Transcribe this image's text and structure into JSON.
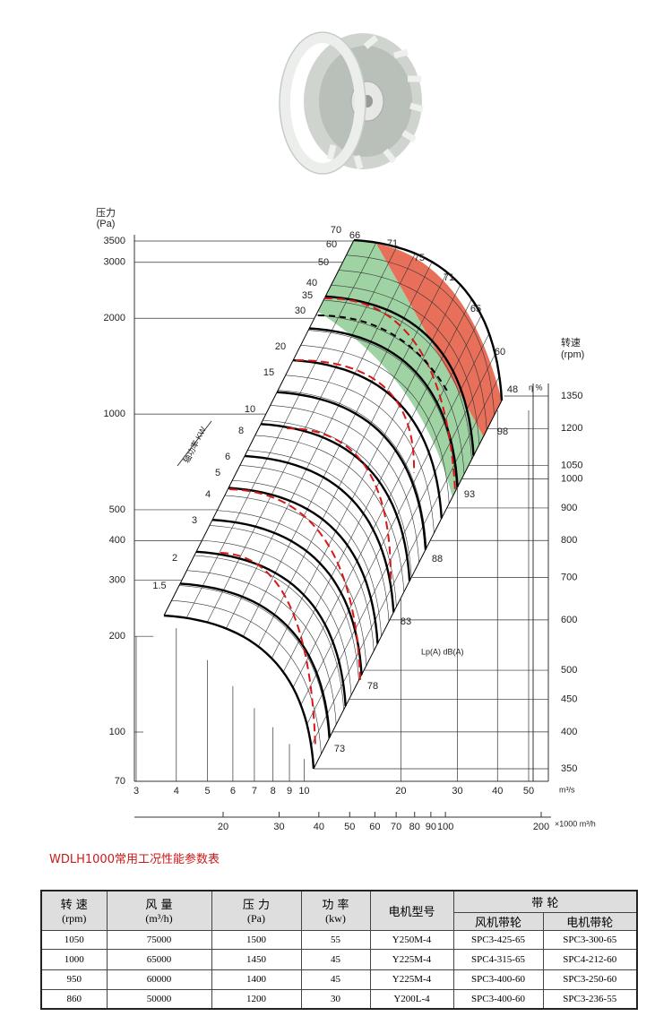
{
  "chart": {
    "pressure_axis": {
      "title": "压力",
      "unit": "(Pa)",
      "ticks": [
        3500,
        3000,
        2000,
        1000,
        500,
        400,
        300,
        200,
        100,
        70
      ]
    },
    "speed_axis": {
      "title": "转速",
      "unit": "(rpm)",
      "ticks": [
        1350,
        1200,
        1050,
        1000,
        900,
        800,
        700,
        600,
        500,
        450,
        400,
        350
      ]
    },
    "efficiency_symbol": "η %",
    "flow_axis": {
      "unit": "m³/s",
      "ticks": [
        3,
        4,
        5,
        6,
        7,
        8,
        9,
        10,
        20,
        30,
        40,
        50
      ]
    },
    "flow_axis_h": {
      "unit": "×1000 m³/h",
      "ticks": [
        20,
        30,
        40,
        50,
        60,
        70,
        80,
        90,
        100,
        200
      ]
    },
    "power_label": "轴功率 KW",
    "power_values": [
      70,
      60,
      50,
      40,
      35,
      30,
      20,
      15,
      10,
      8,
      6,
      5,
      4,
      3,
      2,
      1.5
    ],
    "efficiency_values": [
      66,
      71,
      75,
      71,
      65,
      60,
      48
    ],
    "noise_label": "Lp(A) dB(A)",
    "noise_values": [
      98,
      93,
      88,
      83,
      78,
      73
    ]
  },
  "table": {
    "title": "WDLH1000常用工况性能参数表",
    "columns": [
      {
        "name": "转 速",
        "unit": "(rpm)"
      },
      {
        "name": "风 量",
        "unit": "(m³/h)"
      },
      {
        "name": "压 力",
        "unit": "(Pa)"
      },
      {
        "name": "功 率",
        "unit": "(kw)"
      }
    ],
    "motor_model": "电机型号",
    "pulley": "带 轮",
    "pulley_columns": [
      "风机带轮",
      "电机带轮"
    ],
    "rows": [
      [
        1050,
        75000,
        1500,
        55,
        "Y250M-4",
        "SPC3-425-65",
        "SPC3-300-65"
      ],
      [
        1000,
        65000,
        1450,
        45,
        "Y225M-4",
        "SPC4-315-65",
        "SPC4-212-60"
      ],
      [
        950,
        60000,
        1400,
        45,
        "Y225M-4",
        "SPC3-400-60",
        "SPC3-250-60"
      ],
      [
        860,
        50000,
        1200,
        30,
        "Y200L-4",
        "SPC3-400-60",
        "SPC3-236-55"
      ]
    ]
  }
}
